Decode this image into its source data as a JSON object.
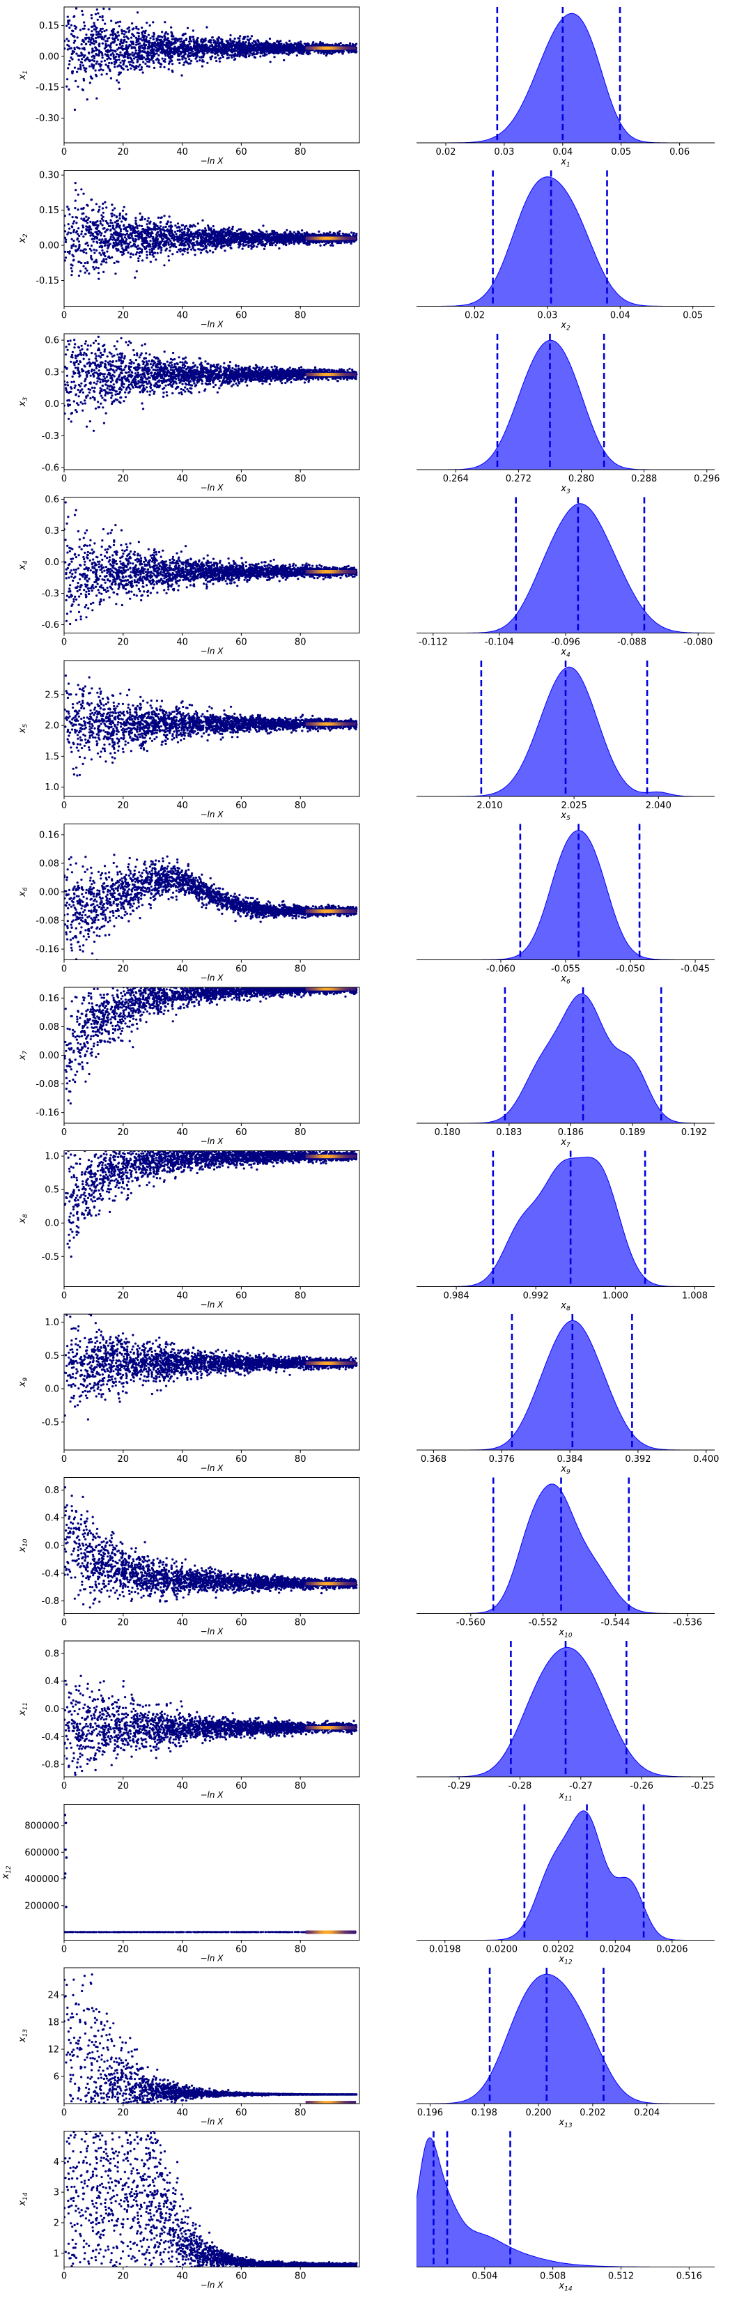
{
  "chart_data": {
    "type": "scatter",
    "trace_x_label": "−ln X",
    "trace_x_ticks": [
      0,
      20,
      40,
      60,
      80
    ],
    "trace_x_range": [
      0,
      100
    ],
    "colors": {
      "trace_points": "#000080",
      "trace_hot": "#f1a340",
      "density_fill": "#5b5bff",
      "density_line": "#0000ff",
      "quantile_line": "#0000dd"
    },
    "rows": [
      {
        "label": "x",
        "sub": "1",
        "trace_ylim": [
          -0.42,
          0.24
        ],
        "trace_yticks": [
          "-0.30",
          "-0.15",
          "0.00",
          "0.15"
        ],
        "trace_yvals": [
          -0.3,
          -0.15,
          0.0,
          0.15
        ],
        "final": 0.04,
        "spread_start": 0.3,
        "density_xlim": [
          0.015,
          0.066
        ],
        "density_xticks": [
          "0.02",
          "0.03",
          "0.04",
          "0.05",
          "0.06"
        ],
        "density_xvals": [
          0.02,
          0.03,
          0.04,
          0.05,
          0.06
        ],
        "quantiles": [
          0.0288,
          0.04,
          0.0498
        ],
        "x_axis_label": "x",
        "x_axis_sub": "1",
        "peaks": [
          [
            0.0382,
            0.9,
            0.0045
          ],
          [
            0.0418,
            0.92,
            0.004
          ],
          [
            0.045,
            0.5,
            0.003
          ]
        ]
      },
      {
        "label": "x",
        "sub": "2",
        "trace_ylim": [
          -0.26,
          0.32
        ],
        "trace_yticks": [
          "-0.15",
          "0.00",
          "0.15",
          "0.30"
        ],
        "trace_yvals": [
          -0.15,
          0.0,
          0.15,
          0.3
        ],
        "final": 0.03,
        "spread_start": 0.28,
        "density_xlim": [
          0.012,
          0.053
        ],
        "density_xticks": [
          "0.02",
          "0.03",
          "0.04",
          "0.05"
        ],
        "density_xvals": [
          0.02,
          0.03,
          0.04,
          0.05
        ],
        "quantiles": [
          0.0225,
          0.0305,
          0.0382
        ],
        "x_axis_label": "x",
        "x_axis_sub": "2",
        "peaks": [
          [
            0.0305,
            0.95,
            0.0035
          ],
          [
            0.027,
            0.55,
            0.003
          ],
          [
            0.0345,
            0.45,
            0.003
          ]
        ]
      },
      {
        "label": "x",
        "sub": "3",
        "trace_ylim": [
          -0.62,
          0.66
        ],
        "trace_yticks": [
          "-0.6",
          "-0.3",
          "0.0",
          "0.3",
          "0.6"
        ],
        "trace_yvals": [
          -0.6,
          -0.3,
          0.0,
          0.3,
          0.6
        ],
        "final": 0.276,
        "spread_start": 0.6,
        "density_xlim": [
          0.259,
          0.297
        ],
        "density_xticks": [
          "0.264",
          "0.272",
          "0.280",
          "0.288",
          "0.296"
        ],
        "density_xvals": [
          0.264,
          0.272,
          0.28,
          0.288,
          0.296
        ],
        "quantiles": [
          0.2693,
          0.276,
          0.2829
        ],
        "x_axis_label": "x",
        "x_axis_sub": "3",
        "peaks": [
          [
            0.2757,
            0.95,
            0.0026
          ],
          [
            0.279,
            0.62,
            0.0025
          ],
          [
            0.2725,
            0.45,
            0.0025
          ]
        ]
      },
      {
        "label": "x",
        "sub": "4",
        "trace_ylim": [
          -0.68,
          0.62
        ],
        "trace_yticks": [
          "-0.6",
          "-0.3",
          "0.0",
          "0.3",
          "0.6"
        ],
        "trace_yvals": [
          -0.6,
          -0.3,
          0.0,
          0.3,
          0.6
        ],
        "final": -0.094,
        "spread_start": 0.55,
        "density_xlim": [
          -0.114,
          -0.078
        ],
        "density_xticks": [
          "-0.112",
          "-0.104",
          "-0.096",
          "-0.088",
          "-0.080"
        ],
        "density_xvals": [
          -0.112,
          -0.104,
          -0.096,
          -0.088,
          -0.08
        ],
        "quantiles": [
          -0.102,
          -0.0945,
          -0.0865
        ],
        "x_axis_label": "x",
        "x_axis_sub": "4",
        "peaks": [
          [
            -0.0945,
            0.95,
            0.0028
          ],
          [
            -0.0905,
            0.5,
            0.003
          ],
          [
            -0.0985,
            0.4,
            0.0025
          ]
        ]
      },
      {
        "label": "x",
        "sub": "5",
        "trace_ylim": [
          0.85,
          3.05
        ],
        "trace_yticks": [
          "1.0",
          "1.5",
          "2.0",
          "2.5"
        ],
        "trace_yvals": [
          1.0,
          1.5,
          2.0,
          2.5
        ],
        "final": 2.023,
        "spread_start": 1.0,
        "density_xlim": [
          1.997,
          2.05
        ],
        "density_xticks": [
          "2.010",
          "2.025",
          "2.040"
        ],
        "density_xvals": [
          2.01,
          2.025,
          2.04
        ],
        "quantiles": [
          2.0085,
          2.0235,
          2.038
        ],
        "x_axis_label": "x",
        "x_axis_sub": "5",
        "peaks": [
          [
            2.0225,
            0.92,
            0.0045
          ],
          [
            2.027,
            0.5,
            0.004
          ],
          [
            2.04,
            0.04,
            0.002
          ]
        ]
      },
      {
        "label": "x",
        "sub": "6",
        "trace_ylim": [
          -0.19,
          0.19
        ],
        "trace_yticks": [
          "-0.16",
          "-0.08",
          "0.00",
          "0.08",
          "0.16"
        ],
        "trace_yvals": [
          -0.16,
          -0.08,
          0.0,
          0.08,
          0.16
        ],
        "final": -0.054,
        "spread_start": 0.16,
        "density_xlim": [
          -0.0665,
          -0.0435
        ],
        "density_xticks": [
          "-0.060",
          "-0.055",
          "-0.050",
          "-0.045"
        ],
        "density_xvals": [
          -0.06,
          -0.055,
          -0.05,
          -0.045
        ],
        "quantiles": [
          -0.0585,
          -0.054,
          -0.0493
        ],
        "x_axis_label": "x",
        "x_axis_sub": "6",
        "peaks": [
          [
            -0.0551,
            0.86,
            0.0014
          ],
          [
            -0.0529,
            0.86,
            0.0014
          ],
          [
            -0.054,
            0.4,
            0.002
          ]
        ]
      },
      {
        "label": "x",
        "sub": "7",
        "trace_ylim": [
          -0.19,
          0.19
        ],
        "trace_yticks": [
          "-0.16",
          "-0.08",
          "0.00",
          "0.08",
          "0.16"
        ],
        "trace_yvals": [
          -0.16,
          -0.08,
          0.0,
          0.08,
          0.16
        ],
        "final": 0.186,
        "spread_start": 0.3,
        "density_xlim": [
          0.1785,
          0.193
        ],
        "density_xticks": [
          "0.180",
          "0.183",
          "0.186",
          "0.189",
          "0.192"
        ],
        "density_xvals": [
          0.18,
          0.183,
          0.186,
          0.189,
          0.192
        ],
        "quantiles": [
          0.1828,
          0.1866,
          0.1904
        ],
        "x_axis_label": "x",
        "x_axis_sub": "7",
        "peaks": [
          [
            0.1866,
            0.95,
            0.0011
          ],
          [
            0.189,
            0.4,
            0.0008
          ],
          [
            0.1845,
            0.35,
            0.0009
          ]
        ]
      },
      {
        "label": "x",
        "sub": "8",
        "trace_ylim": [
          -0.95,
          1.08
        ],
        "trace_yticks": [
          "-0.5",
          "0.0",
          "0.5",
          "1.0"
        ],
        "trace_yvals": [
          -0.5,
          0.0,
          0.5,
          1.0
        ],
        "final": 0.995,
        "spread_start": 1.2,
        "density_xlim": [
          0.98,
          1.01
        ],
        "density_xticks": [
          "0.984",
          "0.992",
          "1.000",
          "1.008"
        ],
        "density_xvals": [
          0.984,
          0.992,
          1.0,
          1.008
        ],
        "quantiles": [
          0.9877,
          0.9955,
          1.003
        ],
        "x_axis_label": "x",
        "x_axis_sub": "8",
        "peaks": [
          [
            0.9945,
            0.85,
            0.002
          ],
          [
            0.9985,
            0.88,
            0.002
          ],
          [
            0.9905,
            0.45,
            0.0018
          ]
        ]
      },
      {
        "label": "x",
        "sub": "9",
        "trace_ylim": [
          -0.92,
          1.12
        ],
        "trace_yticks": [
          "-0.5",
          "0.0",
          "0.5",
          "1.0"
        ],
        "trace_yvals": [
          -0.5,
          0.0,
          0.5,
          1.0
        ],
        "final": 0.384,
        "spread_start": 1.0,
        "density_xlim": [
          0.366,
          0.401
        ],
        "density_xticks": [
          "0.368",
          "0.376",
          "0.384",
          "0.392",
          "0.400"
        ],
        "density_xvals": [
          0.368,
          0.376,
          0.384,
          0.392,
          0.4
        ],
        "quantiles": [
          0.3772,
          0.3843,
          0.3913
        ],
        "x_axis_label": "x",
        "x_axis_sub": "9",
        "peaks": [
          [
            0.384,
            0.95,
            0.0025
          ],
          [
            0.3875,
            0.45,
            0.0025
          ],
          [
            0.3805,
            0.3,
            0.0022
          ]
        ]
      },
      {
        "label": "x",
        "sub": "10",
        "trace_ylim": [
          -0.98,
          0.98
        ],
        "trace_yticks": [
          "-0.8",
          "-0.4",
          "0.0",
          "0.4",
          "0.8"
        ],
        "trace_yvals": [
          -0.8,
          -0.4,
          0.0,
          0.4,
          0.8
        ],
        "final": -0.55,
        "spread_start": 1.0,
        "density_xlim": [
          -0.566,
          -0.533
        ],
        "density_xticks": [
          "-0.560",
          "-0.552",
          "-0.544",
          "-0.536"
        ],
        "density_xvals": [
          -0.56,
          -0.552,
          -0.544,
          -0.536
        ],
        "quantiles": [
          -0.5575,
          -0.55,
          -0.5425
        ],
        "x_axis_label": "x",
        "x_axis_sub": "10",
        "peaks": [
          [
            -0.5505,
            0.95,
            0.002
          ],
          [
            -0.5535,
            0.55,
            0.0018
          ],
          [
            -0.5465,
            0.4,
            0.0022
          ]
        ]
      },
      {
        "label": "x",
        "sub": "11",
        "trace_ylim": [
          -0.98,
          0.98
        ],
        "trace_yticks": [
          "-0.8",
          "-0.4",
          "0.0",
          "0.4",
          "0.8"
        ],
        "trace_yvals": [
          -0.8,
          -0.4,
          0.0,
          0.4,
          0.8
        ],
        "final": -0.272,
        "spread_start": 1.0,
        "density_xlim": [
          -0.297,
          -0.248
        ],
        "density_xticks": [
          "-0.29",
          "-0.28",
          "-0.27",
          "-0.26",
          "-0.25"
        ],
        "density_xvals": [
          -0.29,
          -0.28,
          -0.27,
          -0.26,
          -0.25
        ],
        "quantiles": [
          -0.2815,
          -0.2725,
          -0.2625
        ],
        "x_axis_label": "x",
        "x_axis_sub": "11",
        "peaks": [
          [
            -0.2725,
            0.95,
            0.0045
          ],
          [
            -0.267,
            0.35,
            0.004
          ],
          [
            -0.278,
            0.3,
            0.0035
          ]
        ]
      },
      {
        "label": "x",
        "sub": "12",
        "trace_ylim": [
          -60000,
          960000
        ],
        "trace_yticks": [
          "200000",
          "400000",
          "600000",
          "800000"
        ],
        "trace_yvals": [
          200000,
          400000,
          600000,
          800000
        ],
        "final": 0.0203,
        "spread_start": 0,
        "density_xlim": [
          0.0197,
          0.02075
        ],
        "density_xticks": [
          "0.0198",
          "0.0200",
          "0.0202",
          "0.0204",
          "0.0206"
        ],
        "density_xvals": [
          0.0198,
          0.02,
          0.0202,
          0.0204,
          0.0206
        ],
        "quantiles": [
          0.02008,
          0.0203,
          0.0205
        ],
        "x_axis_label": "x",
        "x_axis_sub": "12",
        "peaks": [
          [
            0.0203,
            0.95,
            6e-05
          ],
          [
            0.02018,
            0.55,
            6e-05
          ],
          [
            0.02045,
            0.45,
            5e-05
          ]
        ]
      },
      {
        "label": "x",
        "sub": "13",
        "trace_ylim": [
          0,
          30
        ],
        "trace_yticks": [
          "6",
          "12",
          "18",
          "24"
        ],
        "trace_yvals": [
          6,
          12,
          18,
          24
        ],
        "final": 0.2,
        "spread_start": 28,
        "density_xlim": [
          0.1955,
          0.2065
        ],
        "density_xticks": [
          "0.196",
          "0.198",
          "0.200",
          "0.202",
          "0.204"
        ],
        "density_xvals": [
          0.196,
          0.198,
          0.2,
          0.202,
          0.204
        ],
        "quantiles": [
          0.1982,
          0.2003,
          0.2024
        ],
        "x_axis_label": "x",
        "x_axis_sub": "13",
        "peaks": [
          [
            0.2004,
            0.95,
            0.001
          ],
          [
            0.2018,
            0.35,
            0.0008
          ],
          [
            0.1992,
            0.35,
            0.0008
          ]
        ]
      },
      {
        "label": "x",
        "sub": "14",
        "trace_ylim": [
          0.55,
          5.0
        ],
        "trace_yticks": [
          "1",
          "2",
          "3",
          "4"
        ],
        "trace_yvals": [
          1,
          2,
          3,
          4
        ],
        "final": 0.5015,
        "spread_start": 4.0,
        "density_xlim": [
          0.5,
          0.5175
        ],
        "density_xticks": [
          "0.504",
          "0.508",
          "0.512",
          "0.516"
        ],
        "density_xvals": [
          0.504,
          0.508,
          0.512,
          0.516
        ],
        "quantiles": [
          0.501,
          0.5018,
          0.5055
        ],
        "x_axis_label": "x",
        "x_axis_sub": "14",
        "peaks": [
          [
            0.5006,
            0.92,
            0.0006
          ],
          [
            0.5016,
            0.5,
            0.0008
          ],
          [
            0.5035,
            0.28,
            0.0014
          ],
          [
            0.506,
            0.08,
            0.0015
          ],
          [
            0.508,
            0.02,
            0.002
          ]
        ]
      }
    ]
  }
}
